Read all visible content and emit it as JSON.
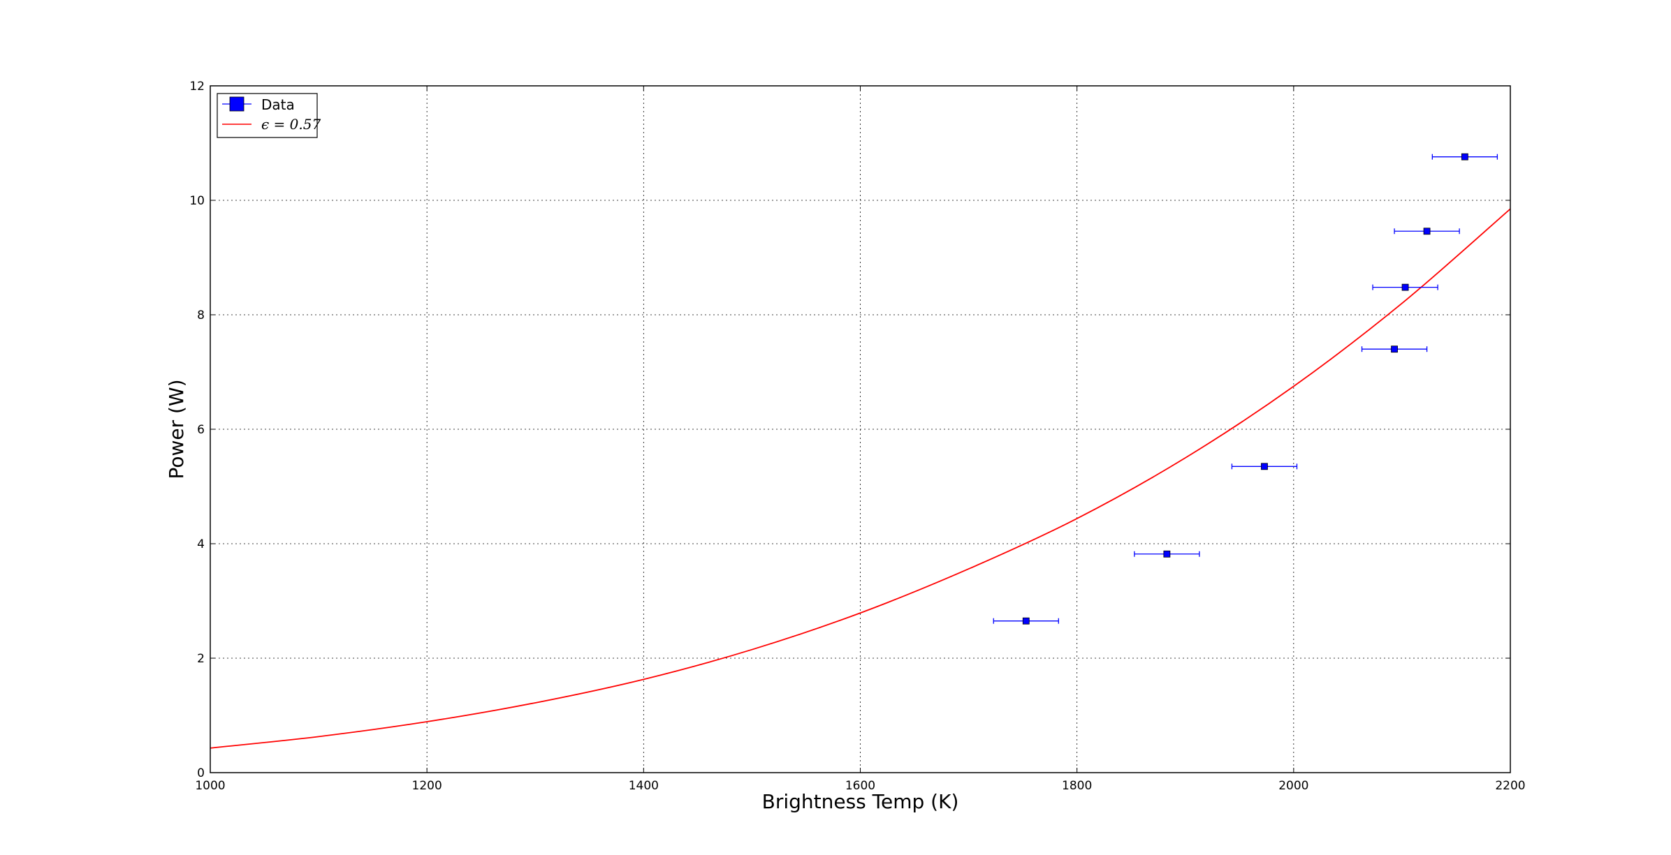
{
  "chart_data": {
    "type": "scatter",
    "xlabel": "Brightness Temp (K)",
    "ylabel": "Power (W)",
    "xlim": [
      1000,
      2200
    ],
    "ylim": [
      0,
      12
    ],
    "xticks": [
      "1000",
      "1200",
      "1400",
      "1600",
      "1800",
      "2000",
      "2200"
    ],
    "yticks": [
      "0",
      "2",
      "4",
      "6",
      "8",
      "10",
      "12"
    ],
    "grid": true,
    "legend_position": "top-left",
    "series": [
      {
        "name": "Data",
        "kind": "errorbar",
        "color": "#0000ff",
        "marker": "square",
        "points": [
          {
            "x": 1753,
            "y": 2.65,
            "xerr": 30
          },
          {
            "x": 1883,
            "y": 3.82,
            "xerr": 30
          },
          {
            "x": 1973,
            "y": 5.35,
            "xerr": 30
          },
          {
            "x": 2093,
            "y": 7.4,
            "xerr": 30
          },
          {
            "x": 2103,
            "y": 8.48,
            "xerr": 30
          },
          {
            "x": 2123,
            "y": 9.46,
            "xerr": 30
          },
          {
            "x": 2158,
            "y": 10.76,
            "xerr": 30
          }
        ]
      },
      {
        "name": "ϵ = 0.57",
        "kind": "line",
        "color": "#ff0000",
        "points": [
          {
            "x": 1000,
            "y": 0.43
          },
          {
            "x": 1100,
            "y": 0.63
          },
          {
            "x": 1200,
            "y": 0.89
          },
          {
            "x": 1300,
            "y": 1.22
          },
          {
            "x": 1400,
            "y": 1.63
          },
          {
            "x": 1500,
            "y": 2.15
          },
          {
            "x": 1600,
            "y": 2.79
          },
          {
            "x": 1700,
            "y": 3.56
          },
          {
            "x": 1800,
            "y": 4.44
          },
          {
            "x": 1900,
            "y": 5.5
          },
          {
            "x": 2000,
            "y": 6.75
          },
          {
            "x": 2100,
            "y": 8.2
          },
          {
            "x": 2200,
            "y": 9.85
          }
        ]
      }
    ]
  }
}
